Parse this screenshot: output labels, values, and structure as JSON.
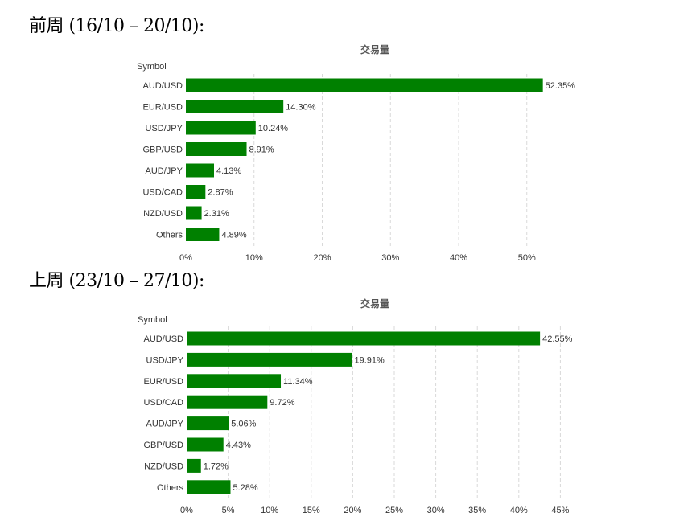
{
  "headings": [
    "前周 (16/10 – 20/10):",
    "上周 (23/10 – 27/10):"
  ],
  "bar_color": "#008000",
  "chart_data": [
    {
      "type": "bar",
      "orientation": "horizontal",
      "title": "交易量",
      "ylabel": "Symbol",
      "categories": [
        "AUD/USD",
        "EUR/USD",
        "USD/JPY",
        "GBP/USD",
        "AUD/JPY",
        "USD/CAD",
        "NZD/USD",
        "Others"
      ],
      "values": [
        52.35,
        14.3,
        10.24,
        8.91,
        4.13,
        2.87,
        2.31,
        4.89
      ],
      "data_labels": [
        "52.35%",
        "14.30%",
        "10.24%",
        "8.91%",
        "4.13%",
        "2.87%",
        "2.31%",
        "4.89%"
      ],
      "xlim": [
        0,
        50
      ],
      "xticks": [
        0,
        10,
        20,
        30,
        40,
        50
      ],
      "xtick_labels": [
        "0%",
        "10%",
        "20%",
        "30%",
        "40%",
        "50%"
      ],
      "grid": true
    },
    {
      "type": "bar",
      "orientation": "horizontal",
      "title": "交易量",
      "ylabel": "Symbol",
      "categories": [
        "AUD/USD",
        "USD/JPY",
        "EUR/USD",
        "USD/CAD",
        "AUD/JPY",
        "GBP/USD",
        "NZD/USD",
        "Others"
      ],
      "values": [
        42.55,
        19.91,
        11.34,
        9.72,
        5.06,
        4.43,
        1.72,
        5.28
      ],
      "data_labels": [
        "42.55%",
        "19.91%",
        "11.34%",
        "9.72%",
        "5.06%",
        "4.43%",
        "1.72%",
        "5.28%"
      ],
      "xlim": [
        0,
        45
      ],
      "xticks": [
        0,
        5,
        10,
        15,
        20,
        25,
        30,
        35,
        40,
        45
      ],
      "xtick_labels": [
        "0%",
        "5%",
        "10%",
        "15%",
        "20%",
        "25%",
        "30%",
        "35%",
        "40%",
        "45%"
      ],
      "grid": true
    }
  ]
}
